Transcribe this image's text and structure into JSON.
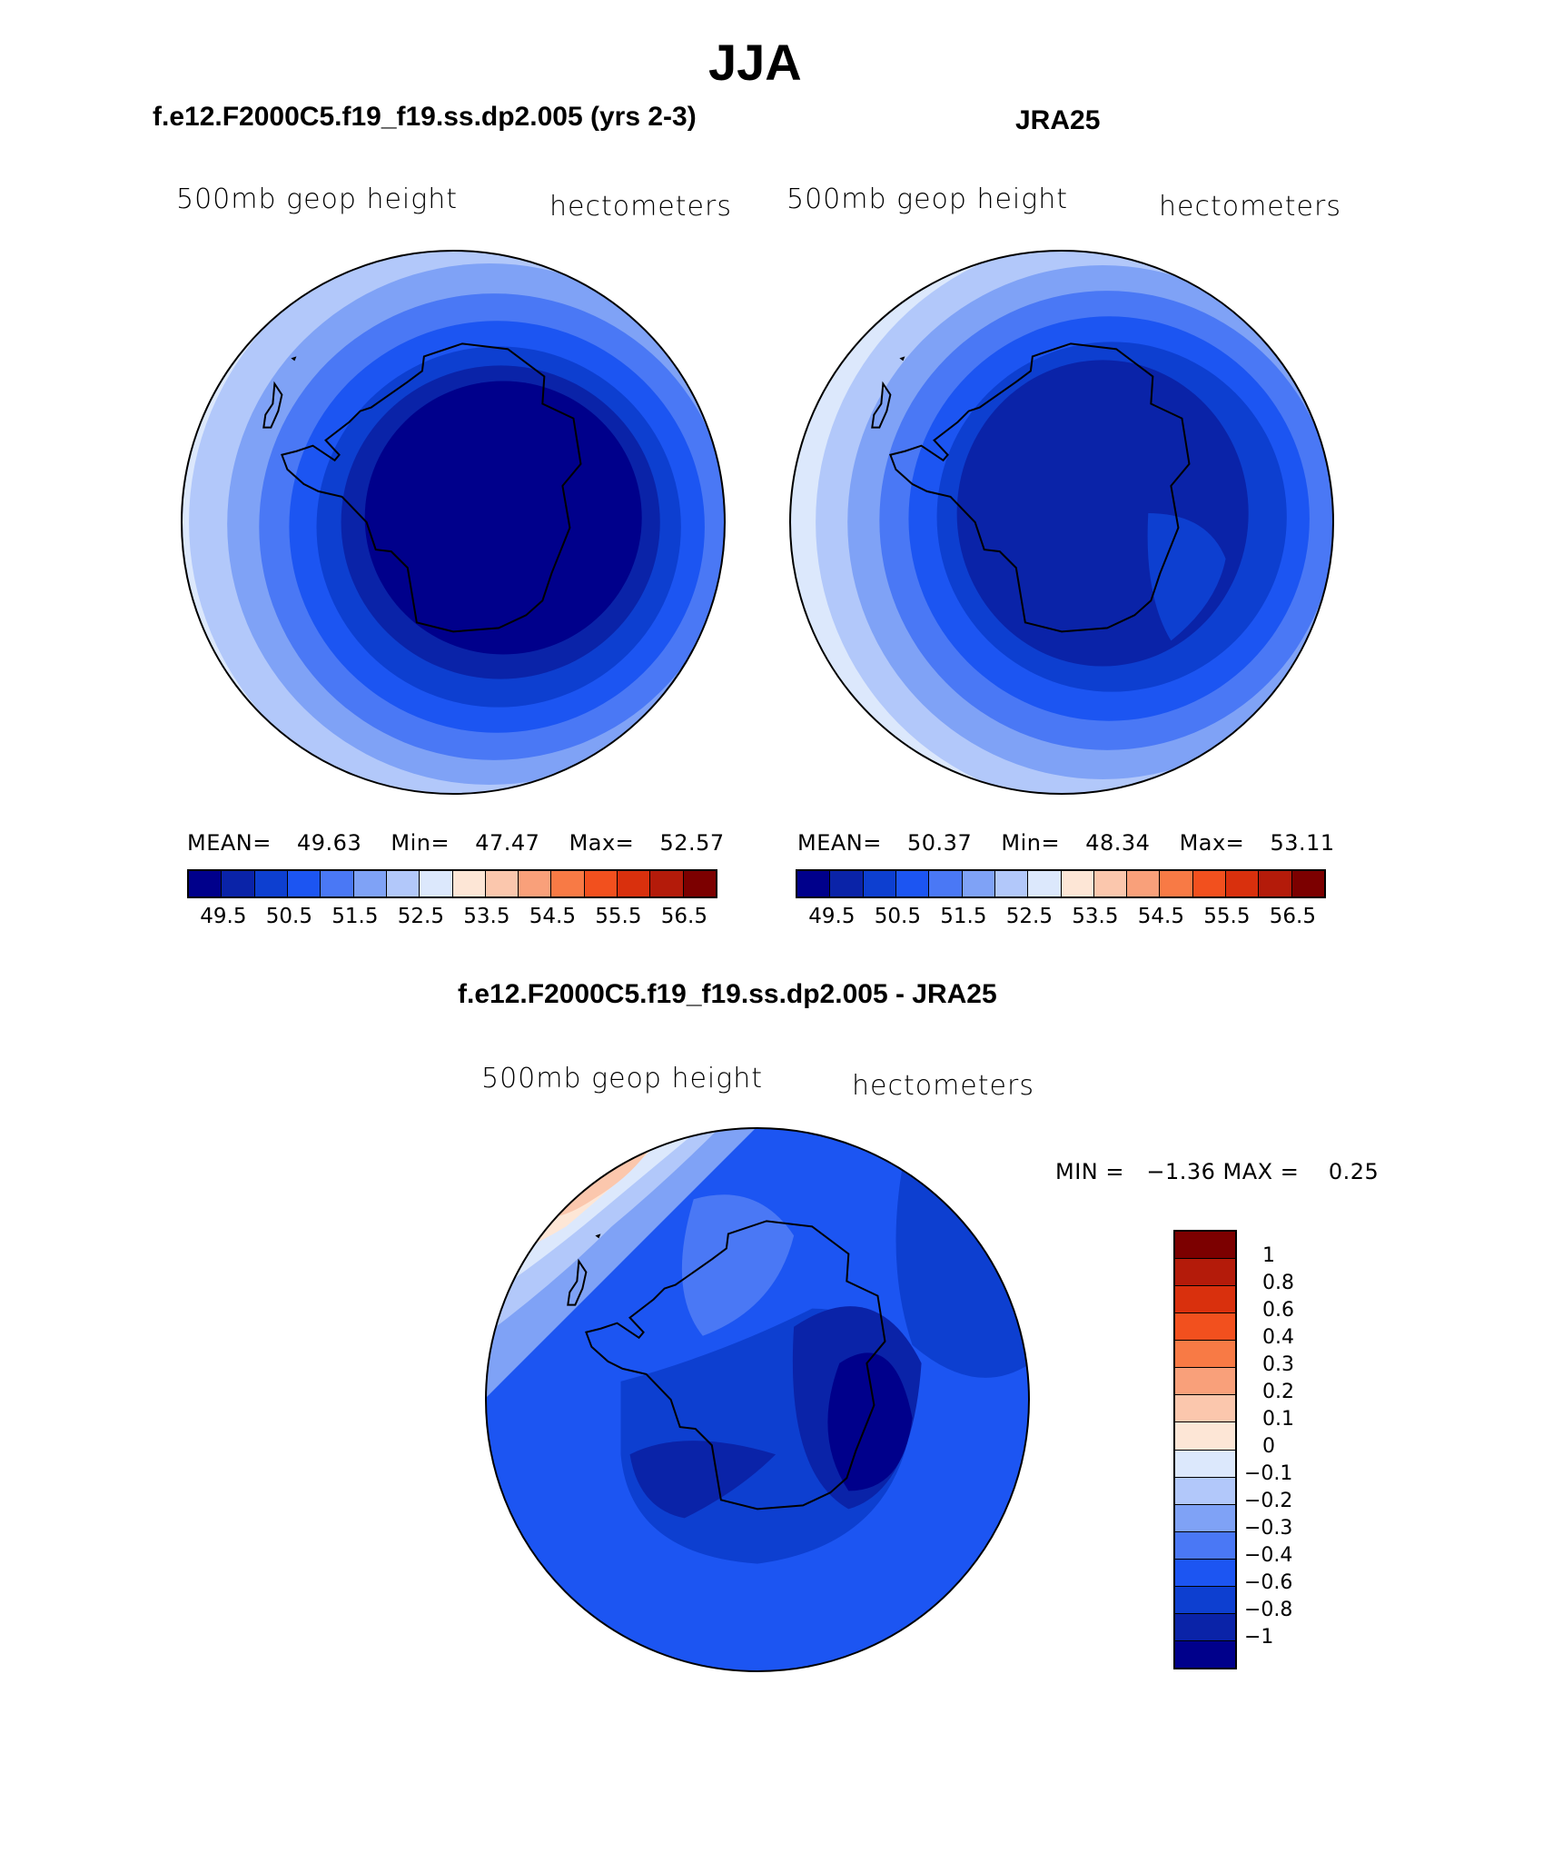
{
  "figure": {
    "title": "JJA",
    "panel1": {
      "title": "f.e12.F2000C5.f19_f19.ss.dp2.005 (yrs 2-3)",
      "variable": "500mb geop height",
      "units": "hectometers",
      "mean_label": "MEAN=",
      "mean": "49.63",
      "min_label": "Min=",
      "min": "47.47",
      "max_label": "Max=",
      "max": "52.57"
    },
    "panel2": {
      "title": "JRA25",
      "variable": "500mb geop height",
      "units": "hectometers",
      "mean_label": "MEAN=",
      "mean": "50.37",
      "min_label": "Min=",
      "min": "48.34",
      "max_label": "Max=",
      "max": "53.11"
    },
    "panel3": {
      "title": "f.e12.F2000C5.f19_f19.ss.dp2.005 - JRA25",
      "variable": "500mb geop height",
      "units": "hectometers",
      "minmax": "MIN =   −1.36 MAX =    0.25"
    }
  },
  "colorbar_abs": {
    "colors": [
      "#00008b",
      "#0a23a8",
      "#0d3fd0",
      "#1c55f2",
      "#4a78f5",
      "#7fa2f6",
      "#b2c8fa",
      "#dce8fc",
      "#fde6d6",
      "#fbc7ad",
      "#f9a07a",
      "#f87a45",
      "#f2501e",
      "#d9300d",
      "#b41b0a",
      "#7c0000"
    ],
    "ticks": [
      "49.5",
      "50.5",
      "51.5",
      "52.5",
      "53.5",
      "54.5",
      "55.5",
      "56.5"
    ]
  },
  "colorbar_diff": {
    "colors": [
      "#7c0000",
      "#b41b0a",
      "#d9300d",
      "#f2501e",
      "#f87a45",
      "#f9a07a",
      "#fbc7ad",
      "#fde6d6",
      "#dce8fc",
      "#b2c8fa",
      "#7fa2f6",
      "#4a78f5",
      "#1c55f2",
      "#0d3fd0",
      "#0a23a8",
      "#00008b"
    ],
    "ticks": [
      "1",
      "0.8",
      "0.6",
      "0.4",
      "0.3",
      "0.2",
      "0.1",
      "0",
      "−0.1",
      "−0.2",
      "−0.3",
      "−0.4",
      "−0.6",
      "−0.8",
      "−1"
    ]
  },
  "chart_data": [
    {
      "type": "heatmap",
      "title": "f.e12.F2000C5.f19_f19.ss.dp2.005 (yrs 2-3)",
      "projection": "south polar stereographic",
      "variable": "500mb geop height",
      "units": "hectometers",
      "mean": 49.63,
      "min": 47.47,
      "max": 52.57,
      "levels": [
        49.5,
        50.5,
        51.5,
        52.5,
        53.5,
        54.5,
        55.5,
        56.5
      ]
    },
    {
      "type": "heatmap",
      "title": "JRA25",
      "projection": "south polar stereographic",
      "variable": "500mb geop height",
      "units": "hectometers",
      "mean": 50.37,
      "min": 48.34,
      "max": 53.11,
      "levels": [
        49.5,
        50.5,
        51.5,
        52.5,
        53.5,
        54.5,
        55.5,
        56.5
      ]
    },
    {
      "type": "heatmap",
      "title": "f.e12.F2000C5.f19_f19.ss.dp2.005 - JRA25",
      "projection": "south polar stereographic",
      "variable": "500mb geop height",
      "units": "hectometers",
      "min": -1.36,
      "max": 0.25,
      "levels": [
        1,
        0.8,
        0.6,
        0.4,
        0.3,
        0.2,
        0.1,
        0,
        -0.1,
        -0.2,
        -0.3,
        -0.4,
        -0.6,
        -0.8,
        -1
      ]
    }
  ]
}
